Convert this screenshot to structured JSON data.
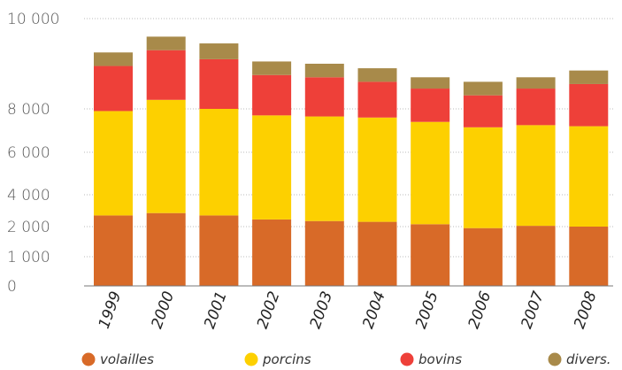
{
  "chart_data": {
    "type": "bar",
    "stacked": true,
    "categories": [
      "1999",
      "2000",
      "2001",
      "2002",
      "2003",
      "2004",
      "2005",
      "2006",
      "2007",
      "2008"
    ],
    "y_ticks": [
      {
        "value": 0,
        "label": "0"
      },
      {
        "value": 1000,
        "label": "1 000"
      },
      {
        "value": 2000,
        "label": "2 000"
      },
      {
        "value": 4000,
        "label": "4 000"
      },
      {
        "value": 6000,
        "label": "6 000"
      },
      {
        "value": 8000,
        "label": "8 000"
      },
      {
        "value": 10000,
        "label": "10 000"
      }
    ],
    "grid": true,
    "legend_position": "bottom",
    "series": [
      {
        "name": "volailles",
        "color": "#d86a28",
        "values": [
          2700,
          2850,
          2700,
          2450,
          2350,
          2300,
          2150,
          1950,
          2050,
          2000
        ]
      },
      {
        "name": "porcins",
        "color": "#fdd000",
        "values": [
          5200,
          5350,
          5300,
          5250,
          5300,
          5300,
          5250,
          5200,
          5200,
          5200
        ]
      },
      {
        "name": "bovins",
        "color": "#ee4039",
        "values": [
          1050,
          1100,
          1100,
          1050,
          1050,
          1000,
          1050,
          1150,
          1200,
          1350
        ]
      },
      {
        "name": "divers.",
        "color": "#a88a4a",
        "values": [
          300,
          300,
          350,
          300,
          300,
          300,
          250,
          300,
          250,
          300
        ]
      }
    ]
  }
}
